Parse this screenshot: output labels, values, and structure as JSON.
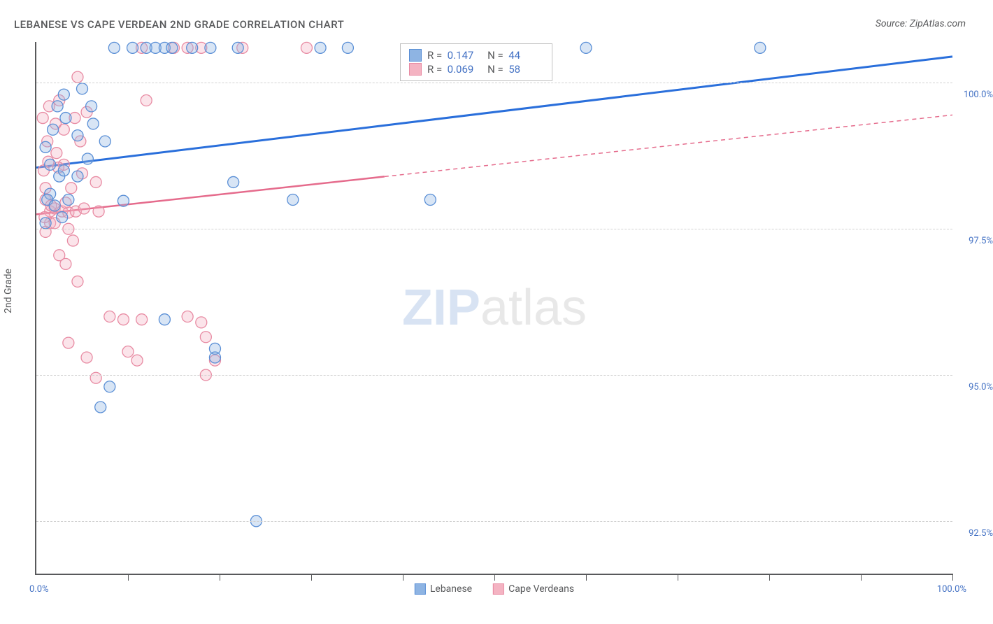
{
  "title": "LEBANESE VS CAPE VERDEAN 2ND GRADE CORRELATION CHART",
  "source": "Source: ZipAtlas.com",
  "y_axis_title": "2nd Grade",
  "watermark_zip": "ZIP",
  "watermark_atlas": "atlas",
  "chart": {
    "type": "scatter",
    "plot_background": "#ffffff",
    "grid_color": "#d0d0d0",
    "axis_color": "#58595b",
    "tick_label_color": "#4472c4",
    "xlim": [
      0,
      100
    ],
    "ylim": [
      91.6,
      100.7
    ],
    "y_ticks": [
      {
        "value": 92.5,
        "label": "92.5%"
      },
      {
        "value": 95.0,
        "label": "95.0%"
      },
      {
        "value": 97.5,
        "label": "97.5%"
      },
      {
        "value": 100.0,
        "label": "100.0%"
      }
    ],
    "x_tick_positions": [
      10,
      20,
      30,
      40,
      50,
      60,
      70,
      80,
      90,
      100
    ],
    "x_min_label": "0.0%",
    "x_max_label": "100.0%",
    "marker_radius": 8,
    "marker_fill_opacity": 0.35,
    "marker_stroke_width": 1.3,
    "series": {
      "lebanese": {
        "label": "Lebanese",
        "color": "#8eb4e3",
        "stroke": "#5a8fd6",
        "points": [
          {
            "x": 8.5,
            "y": 100.6
          },
          {
            "x": 10.5,
            "y": 100.6
          },
          {
            "x": 12,
            "y": 100.6
          },
          {
            "x": 13,
            "y": 100.6
          },
          {
            "x": 14,
            "y": 100.6
          },
          {
            "x": 14.8,
            "y": 100.6
          },
          {
            "x": 17,
            "y": 100.6
          },
          {
            "x": 19,
            "y": 100.6
          },
          {
            "x": 22,
            "y": 100.6
          },
          {
            "x": 31,
            "y": 100.6
          },
          {
            "x": 34,
            "y": 100.6
          },
          {
            "x": 60,
            "y": 100.6
          },
          {
            "x": 79,
            "y": 100.6
          },
          {
            "x": 3,
            "y": 99.8
          },
          {
            "x": 5,
            "y": 99.9
          },
          {
            "x": 6,
            "y": 99.6
          },
          {
            "x": 4.5,
            "y": 99.1
          },
          {
            "x": 7.5,
            "y": 99.0
          },
          {
            "x": 1.5,
            "y": 98.6
          },
          {
            "x": 2.5,
            "y": 98.4
          },
          {
            "x": 3,
            "y": 98.5
          },
          {
            "x": 4.5,
            "y": 98.4
          },
          {
            "x": 1.5,
            "y": 98.1
          },
          {
            "x": 21.5,
            "y": 98.3
          },
          {
            "x": 9.5,
            "y": 97.98
          },
          {
            "x": 28,
            "y": 98.0
          },
          {
            "x": 43,
            "y": 98.0
          },
          {
            "x": 14,
            "y": 95.95
          },
          {
            "x": 19.5,
            "y": 95.45
          },
          {
            "x": 19.5,
            "y": 95.3
          },
          {
            "x": 8,
            "y": 94.8
          },
          {
            "x": 7,
            "y": 94.45
          },
          {
            "x": 24,
            "y": 92.5
          },
          {
            "x": 1.2,
            "y": 98.0
          },
          {
            "x": 2.0,
            "y": 97.9
          },
          {
            "x": 3.5,
            "y": 98.0
          },
          {
            "x": 1.0,
            "y": 98.9
          },
          {
            "x": 1.8,
            "y": 99.2
          },
          {
            "x": 3.2,
            "y": 99.4
          },
          {
            "x": 5.6,
            "y": 98.7
          },
          {
            "x": 6.2,
            "y": 99.3
          },
          {
            "x": 2.3,
            "y": 99.6
          },
          {
            "x": 1.0,
            "y": 97.6
          },
          {
            "x": 2.8,
            "y": 97.7
          }
        ],
        "trendline": {
          "color": "#2a6fdb",
          "width": 3,
          "x1": 0,
          "y1": 98.55,
          "x2": 100,
          "y2": 100.45,
          "solid_until_x": 100
        }
      },
      "cape_verdeans": {
        "label": "Cape Verdeans",
        "color": "#f4b3c2",
        "stroke": "#e88ba3",
        "points": [
          {
            "x": 4.5,
            "y": 100.1
          },
          {
            "x": 11.5,
            "y": 100.6
          },
          {
            "x": 15,
            "y": 100.6
          },
          {
            "x": 16.5,
            "y": 100.6
          },
          {
            "x": 18,
            "y": 100.6
          },
          {
            "x": 22.5,
            "y": 100.6
          },
          {
            "x": 29.5,
            "y": 100.6
          },
          {
            "x": 2.5,
            "y": 99.7
          },
          {
            "x": 12,
            "y": 99.7
          },
          {
            "x": 1.2,
            "y": 99.0
          },
          {
            "x": 2.2,
            "y": 98.8
          },
          {
            "x": 3.0,
            "y": 98.6
          },
          {
            "x": 1.0,
            "y": 98.2
          },
          {
            "x": 1.0,
            "y": 98.0
          },
          {
            "x": 1.5,
            "y": 97.8
          },
          {
            "x": 2.0,
            "y": 97.85
          },
          {
            "x": 2.8,
            "y": 97.8
          },
          {
            "x": 3.5,
            "y": 97.78
          },
          {
            "x": 4.3,
            "y": 97.8
          },
          {
            "x": 5.2,
            "y": 97.85
          },
          {
            "x": 6.8,
            "y": 97.8
          },
          {
            "x": 1.0,
            "y": 97.45
          },
          {
            "x": 3.5,
            "y": 97.5
          },
          {
            "x": 4.0,
            "y": 97.3
          },
          {
            "x": 2.5,
            "y": 97.05
          },
          {
            "x": 3.2,
            "y": 96.9
          },
          {
            "x": 4.5,
            "y": 96.6
          },
          {
            "x": 8,
            "y": 96.0
          },
          {
            "x": 9.5,
            "y": 95.95
          },
          {
            "x": 11.5,
            "y": 95.95
          },
          {
            "x": 16.5,
            "y": 96.0
          },
          {
            "x": 18,
            "y": 95.9
          },
          {
            "x": 18.5,
            "y": 95.65
          },
          {
            "x": 3.5,
            "y": 95.55
          },
          {
            "x": 10,
            "y": 95.4
          },
          {
            "x": 5.5,
            "y": 95.3
          },
          {
            "x": 11,
            "y": 95.25
          },
          {
            "x": 19.5,
            "y": 95.25
          },
          {
            "x": 18.5,
            "y": 95.0
          },
          {
            "x": 6.5,
            "y": 94.95
          },
          {
            "x": 1.5,
            "y": 97.6
          },
          {
            "x": 2.0,
            "y": 97.6
          },
          {
            "x": 0.8,
            "y": 98.5
          },
          {
            "x": 1.3,
            "y": 98.65
          },
          {
            "x": 2.1,
            "y": 99.3
          },
          {
            "x": 3.0,
            "y": 99.2
          },
          {
            "x": 4.2,
            "y": 99.4
          },
          {
            "x": 3.8,
            "y": 98.2
          },
          {
            "x": 5.0,
            "y": 98.45
          },
          {
            "x": 6.5,
            "y": 98.3
          },
          {
            "x": 1.4,
            "y": 99.6
          },
          {
            "x": 0.7,
            "y": 99.4
          },
          {
            "x": 1.6,
            "y": 97.9
          },
          {
            "x": 2.4,
            "y": 98.55
          },
          {
            "x": 0.9,
            "y": 97.7
          },
          {
            "x": 4.8,
            "y": 99.0
          },
          {
            "x": 3.2,
            "y": 97.95
          },
          {
            "x": 5.5,
            "y": 99.5
          }
        ],
        "trendline": {
          "color": "#e56b8c",
          "width": 2.5,
          "x1": 0,
          "y1": 97.75,
          "x2": 100,
          "y2": 99.45,
          "solid_until_x": 38
        }
      }
    },
    "stats_box": {
      "rows": [
        {
          "swatch_fill": "#8eb4e3",
          "swatch_stroke": "#5a8fd6",
          "r_label": "R =",
          "r_val": "0.147",
          "n_label": "N =",
          "n_val": "44"
        },
        {
          "swatch_fill": "#f4b3c2",
          "swatch_stroke": "#e88ba3",
          "r_label": "R =",
          "r_val": "0.069",
          "n_label": "N =",
          "n_val": "58"
        }
      ]
    }
  }
}
